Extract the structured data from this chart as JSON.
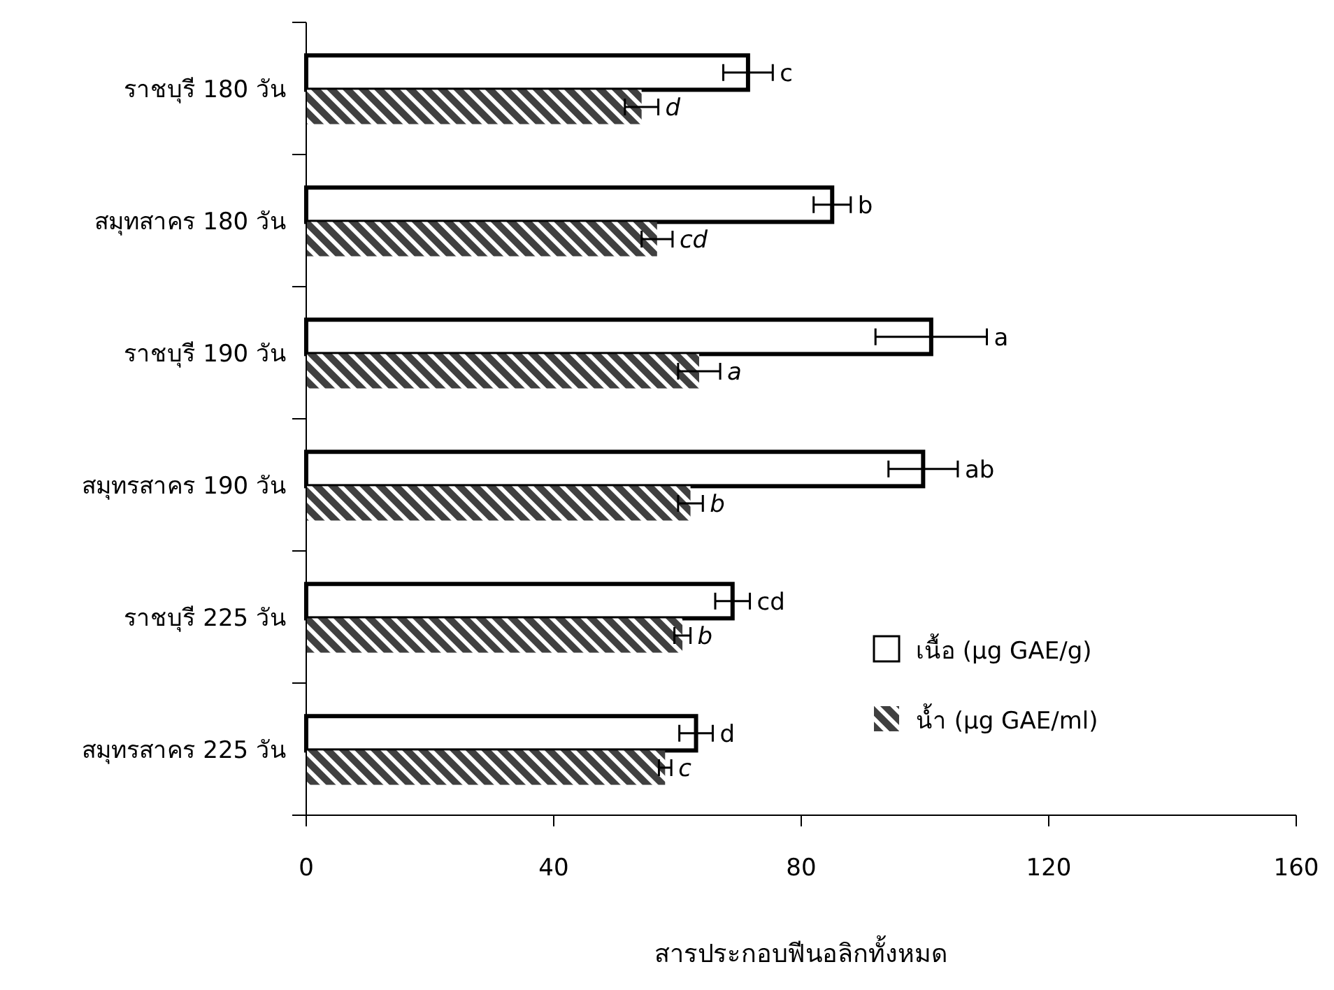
{
  "chart_data": {
    "type": "bar",
    "orientation": "horizontal",
    "xlabel": "สารประกอบฟีนอลิกทั้งหมด",
    "categories": [
      "ราชบุรี 180 วัน",
      "สมุทสาคร 180 วัน",
      "ราชบุรี 190 วัน",
      "สมุทรสาคร 190 วัน",
      "ราชบุรี 225 วัน",
      "สมุทรสาคร 225 วัน"
    ],
    "series": [
      {
        "name": "เนื้อ (µg GAE/g)",
        "color": "#ffffff",
        "values": [
          71.4,
          85,
          101,
          99.7,
          68.9,
          63
        ],
        "errors": [
          4,
          3,
          9,
          5.6,
          2.8,
          2.7
        ],
        "value_labels": [
          "c",
          "b",
          "a",
          "ab",
          "cd",
          "d"
        ]
      },
      {
        "name": "น้ำ (µg GAE/ml)",
        "color": "#404040",
        "values": [
          54.2,
          56.7,
          63.5,
          62.1,
          60.8,
          58
        ],
        "errors": [
          2.7,
          2.5,
          3.4,
          2,
          1.3,
          1
        ],
        "value_labels": [
          "d",
          "cd",
          "a",
          "b",
          "b",
          "c"
        ]
      }
    ],
    "xlim": [
      0,
      160
    ],
    "xticks": [
      0,
      40,
      80,
      120,
      160
    ],
    "grid": false,
    "legend": "bottom right"
  }
}
